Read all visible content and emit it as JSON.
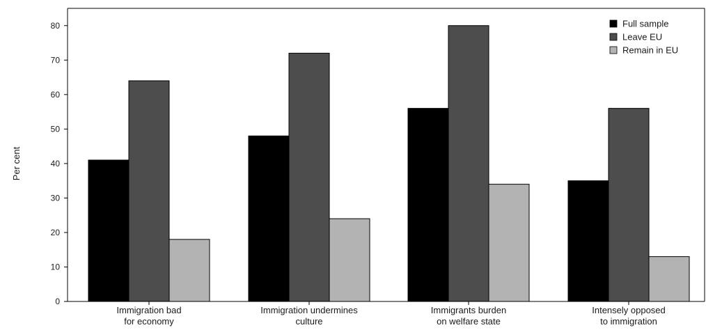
{
  "chart_data": {
    "type": "bar",
    "title": "",
    "xlabel": "",
    "ylabel": "Per cent",
    "ylim": [
      0,
      85
    ],
    "yticks": [
      0,
      10,
      20,
      30,
      40,
      50,
      60,
      70,
      80
    ],
    "grid": false,
    "legend_position": "top-right",
    "categories": [
      [
        "Immigration bad",
        "for economy"
      ],
      [
        "Immigration undermines",
        "culture"
      ],
      [
        "Immigrants burden",
        "on welfare state"
      ],
      [
        "Intensely opposed",
        "to immigration"
      ]
    ],
    "series": [
      {
        "name": "Full sample",
        "color": "#000000",
        "values": [
          41,
          48,
          56,
          35
        ]
      },
      {
        "name": "Leave EU",
        "color": "#4d4d4d",
        "values": [
          64,
          72,
          80,
          56
        ]
      },
      {
        "name": "Remain in EU",
        "color": "#b3b3b3",
        "values": [
          18,
          24,
          34,
          13
        ]
      }
    ]
  }
}
